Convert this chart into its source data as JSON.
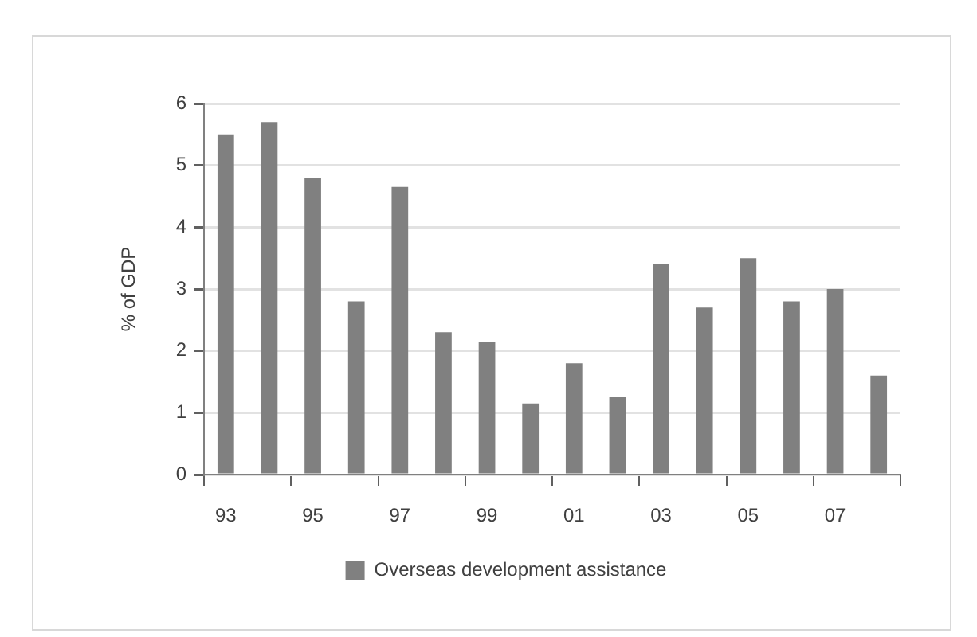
{
  "chart_data": {
    "type": "bar",
    "categories": [
      "93",
      null,
      "95",
      null,
      "97",
      null,
      "99",
      null,
      "01",
      null,
      "03",
      null,
      "05",
      null,
      "07",
      null
    ],
    "series": [
      {
        "name": "Overseas development assistance",
        "color": "#808080",
        "values": [
          5.5,
          5.7,
          4.8,
          2.8,
          4.65,
          2.3,
          2.15,
          1.15,
          1.8,
          1.25,
          3.4,
          2.7,
          3.5,
          2.8,
          3.0,
          1.6
        ]
      }
    ],
    "ylabel": "% of GDP",
    "ylim": [
      0,
      6
    ],
    "yticks": [
      0,
      1,
      2,
      3,
      4,
      5,
      6
    ],
    "grid": "y",
    "legend": "bottom"
  }
}
